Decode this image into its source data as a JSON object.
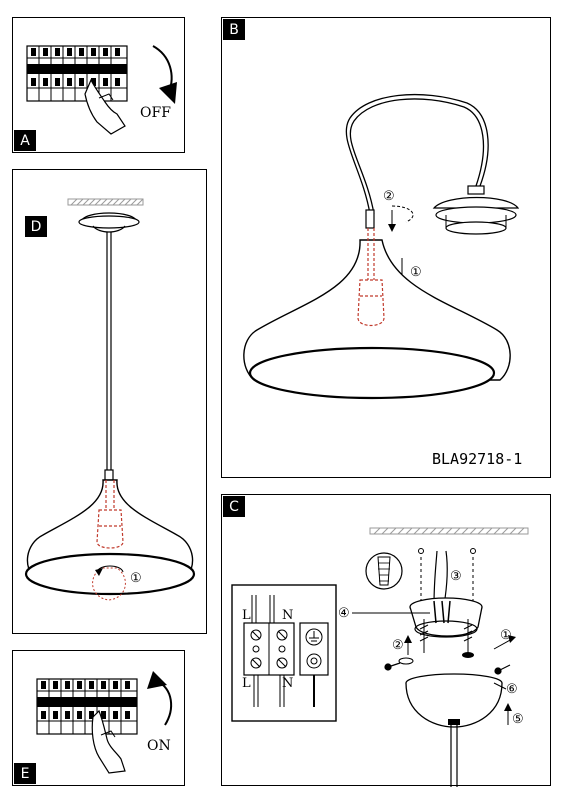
{
  "panels": {
    "a": {
      "tag": "A",
      "switch_label": "OFF"
    },
    "b": {
      "tag": "B",
      "step1": "①",
      "step2": "②",
      "code": "BLA92718-1"
    },
    "c": {
      "tag": "C",
      "step1": "①",
      "step2": "②",
      "step3": "③",
      "step4": "④",
      "step5": "⑤",
      "step6": "⑥",
      "terminal_l": "L",
      "terminal_n": "N"
    },
    "d": {
      "tag": "D",
      "step1": "①"
    },
    "e": {
      "tag": "E",
      "switch_label": "ON"
    }
  },
  "colors": {
    "line": "#000000",
    "hidden_part": "#c0392b",
    "ceiling_hatch": "#9a9a9a"
  }
}
